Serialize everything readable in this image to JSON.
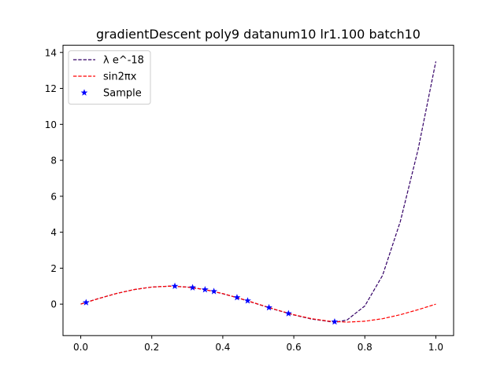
{
  "chart_data": {
    "type": "line",
    "title": "gradientDescent poly9 datanum10 lr1.100 batch10",
    "xlabel": "",
    "ylabel": "",
    "xlim": [
      -0.05,
      1.05
    ],
    "ylim": [
      -1.75,
      14.4
    ],
    "x_ticks": [
      0.0,
      0.2,
      0.4,
      0.6,
      0.8,
      1.0
    ],
    "x_tick_labels": [
      "0.0",
      "0.2",
      "0.4",
      "0.6",
      "0.8",
      "1.0"
    ],
    "y_ticks": [
      0,
      2,
      4,
      6,
      8,
      10,
      12,
      14
    ],
    "y_tick_labels": [
      "0",
      "2",
      "4",
      "6",
      "8",
      "10",
      "12",
      "14"
    ],
    "grid": false,
    "legend_position": "top-left",
    "series": [
      {
        "name": "λ e^-18",
        "style": "dashed",
        "color": "#330066",
        "x": [
          0.0,
          0.05,
          0.1,
          0.15,
          0.2,
          0.25,
          0.3,
          0.35,
          0.4,
          0.45,
          0.5,
          0.55,
          0.6,
          0.65,
          0.7,
          0.72,
          0.75,
          0.8,
          0.85,
          0.9,
          0.95,
          1.0
        ],
        "y": [
          0.01,
          0.31,
          0.59,
          0.81,
          0.95,
          1.0,
          0.95,
          0.81,
          0.58,
          0.3,
          -0.01,
          -0.32,
          -0.6,
          -0.83,
          -0.97,
          -1.0,
          -0.88,
          -0.1,
          1.6,
          4.6,
          8.6,
          13.5
        ]
      },
      {
        "name": "sin2πx",
        "style": "dashed",
        "color": "#ff0000",
        "x": [
          0.0,
          0.05,
          0.1,
          0.15,
          0.2,
          0.25,
          0.3,
          0.35,
          0.4,
          0.45,
          0.5,
          0.55,
          0.6,
          0.65,
          0.7,
          0.75,
          0.8,
          0.85,
          0.9,
          0.95,
          1.0
        ],
        "y": [
          0.0,
          0.309,
          0.588,
          0.809,
          0.951,
          1.0,
          0.951,
          0.809,
          0.588,
          0.309,
          0.0,
          -0.309,
          -0.588,
          -0.809,
          -0.951,
          -1.0,
          -0.951,
          -0.809,
          -0.588,
          -0.309,
          0.0
        ]
      },
      {
        "name": "Sample",
        "style": "markers",
        "marker": "star",
        "color": "#0000ff",
        "x": [
          0.015,
          0.265,
          0.315,
          0.35,
          0.375,
          0.44,
          0.47,
          0.53,
          0.585,
          0.715
        ],
        "y": [
          0.09,
          1.0,
          0.92,
          0.81,
          0.71,
          0.37,
          0.19,
          -0.19,
          -0.52,
          -0.98
        ]
      }
    ]
  }
}
